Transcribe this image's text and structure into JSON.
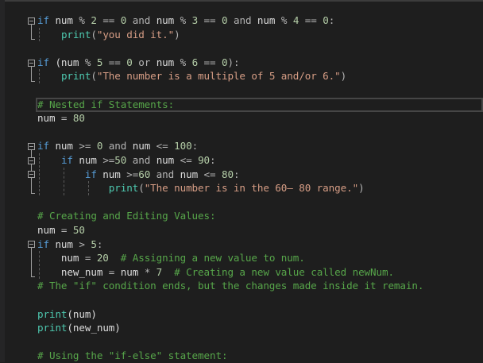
{
  "editor": {
    "current_line": 6,
    "colors": {
      "keyword": "#569cd6",
      "builtin": "#4ec9b0",
      "string": "#d69d85",
      "number": "#b5cea8",
      "comment": "#57a64a",
      "identifier": "#dcdcdc"
    },
    "lines": [
      [
        [
          "if",
          "kw"
        ],
        [
          " num ",
          "id"
        ],
        [
          "%",
          "op"
        ],
        [
          " ",
          "id"
        ],
        [
          "2",
          "num"
        ],
        [
          " == ",
          "op"
        ],
        [
          "0",
          "num"
        ],
        [
          " and ",
          "op"
        ],
        [
          "num",
          "id"
        ],
        [
          " % ",
          "op"
        ],
        [
          "3",
          "num"
        ],
        [
          " == ",
          "op"
        ],
        [
          "0",
          "num"
        ],
        [
          " and ",
          "op"
        ],
        [
          "num",
          "id"
        ],
        [
          " % ",
          "op"
        ],
        [
          "4",
          "num"
        ],
        [
          " == ",
          "op"
        ],
        [
          "0",
          "num"
        ],
        [
          ":",
          "op"
        ]
      ],
      [
        [
          "    ",
          "id"
        ],
        [
          "print",
          "fn"
        ],
        [
          "(",
          "op"
        ],
        [
          "\"you did it.\"",
          "str"
        ],
        [
          ")",
          "op"
        ]
      ],
      [],
      [
        [
          "if",
          "kw"
        ],
        [
          " (num ",
          "id"
        ],
        [
          "% ",
          "op"
        ],
        [
          "5",
          "num"
        ],
        [
          " == ",
          "op"
        ],
        [
          "0",
          "num"
        ],
        [
          " or ",
          "op"
        ],
        [
          "num",
          "id"
        ],
        [
          " % ",
          "op"
        ],
        [
          "6",
          "num"
        ],
        [
          " == ",
          "op"
        ],
        [
          "0",
          "num"
        ],
        [
          "):",
          "op"
        ]
      ],
      [
        [
          "    ",
          "id"
        ],
        [
          "print",
          "fn"
        ],
        [
          "(",
          "op"
        ],
        [
          "\"The number is a multiple of 5 and/or 6.\"",
          "str"
        ],
        [
          ")",
          "op"
        ]
      ],
      [],
      [
        [
          "# Nested if Statements:",
          "com"
        ]
      ],
      [
        [
          "num",
          "id"
        ],
        [
          " = ",
          "op"
        ],
        [
          "80",
          "num"
        ]
      ],
      [],
      [
        [
          "if",
          "kw"
        ],
        [
          " num ",
          "id"
        ],
        [
          ">= ",
          "op"
        ],
        [
          "0",
          "num"
        ],
        [
          " and ",
          "op"
        ],
        [
          "num",
          "id"
        ],
        [
          " <= ",
          "op"
        ],
        [
          "100",
          "num"
        ],
        [
          ":",
          "op"
        ]
      ],
      [
        [
          "    ",
          "id"
        ],
        [
          "if",
          "kw"
        ],
        [
          " num ",
          "id"
        ],
        [
          ">=",
          "op"
        ],
        [
          "50",
          "num"
        ],
        [
          " and ",
          "op"
        ],
        [
          "num",
          "id"
        ],
        [
          " <= ",
          "op"
        ],
        [
          "90",
          "num"
        ],
        [
          ":",
          "op"
        ]
      ],
      [
        [
          "        ",
          "id"
        ],
        [
          "if",
          "kw"
        ],
        [
          " num ",
          "id"
        ],
        [
          ">=",
          "op"
        ],
        [
          "60",
          "num"
        ],
        [
          " and ",
          "op"
        ],
        [
          "num",
          "id"
        ],
        [
          " <= ",
          "op"
        ],
        [
          "80",
          "num"
        ],
        [
          ":",
          "op"
        ]
      ],
      [
        [
          "            ",
          "id"
        ],
        [
          "print",
          "fn"
        ],
        [
          "(",
          "op"
        ],
        [
          "\"The number is in the 60– 80 range.\"",
          "str"
        ],
        [
          ")",
          "op"
        ]
      ],
      [],
      [
        [
          "# Creating and Editing Values:",
          "com"
        ]
      ],
      [
        [
          "num",
          "id"
        ],
        [
          " = ",
          "op"
        ],
        [
          "50",
          "num"
        ]
      ],
      [
        [
          "if",
          "kw"
        ],
        [
          " num ",
          "id"
        ],
        [
          "> ",
          "op"
        ],
        [
          "5",
          "num"
        ],
        [
          ":",
          "op"
        ]
      ],
      [
        [
          "    num",
          "id"
        ],
        [
          " = ",
          "op"
        ],
        [
          "20",
          "num"
        ],
        [
          "  # Assigning a new value to num.",
          "com"
        ]
      ],
      [
        [
          "    new_num",
          "id"
        ],
        [
          " = ",
          "op"
        ],
        [
          "num",
          "id"
        ],
        [
          " * ",
          "op"
        ],
        [
          "7",
          "num"
        ],
        [
          "  # Creating a new value called newNum.",
          "com"
        ]
      ],
      [
        [
          "# The \"if\" condition ends, but the changes made inside it remain.",
          "com"
        ]
      ],
      [],
      [
        [
          "print",
          "fn"
        ],
        [
          "(num)",
          "id"
        ]
      ],
      [
        [
          "print",
          "fn"
        ],
        [
          "(new_num)",
          "id"
        ]
      ],
      [],
      [
        [
          "# Using the \"if-else\" statement:",
          "com"
        ]
      ]
    ]
  }
}
